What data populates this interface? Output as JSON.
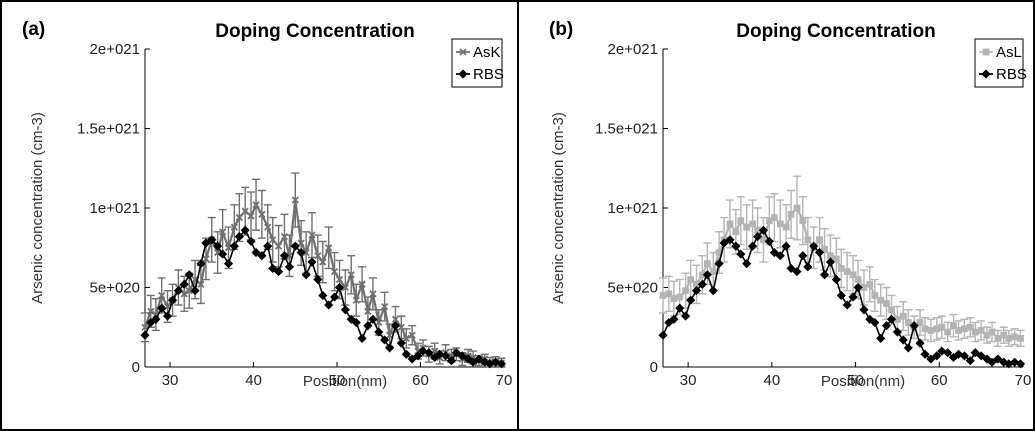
{
  "chart_data": [
    {
      "panel": "(a)",
      "type": "line",
      "title": "Doping Concentration",
      "xlabel": "Position(nm)",
      "ylabel": "Arsenic concentration (cm-3)",
      "xlim": [
        27,
        70
      ],
      "ylim": [
        0,
        2e+21
      ],
      "xticks": [
        30,
        40,
        50,
        60,
        70
      ],
      "yticks": [
        0,
        5e+20,
        1e+21,
        1.5e+21,
        2e+21
      ],
      "xtick_labels": [
        "30",
        "40",
        "50",
        "60",
        "70"
      ],
      "ytick_labels": [
        "0",
        "5e+020",
        "1e+021",
        "1.5e+021",
        "2e+021"
      ],
      "legend_position": "top-right",
      "grid": false,
      "series": [
        {
          "name": "AsK",
          "color": "#707070",
          "marker": "x",
          "error_bars": true,
          "x": [
            27,
            27.7,
            28.3,
            29,
            29.7,
            30.3,
            31,
            31.7,
            32.3,
            33,
            33.7,
            34.3,
            35,
            35.7,
            36.3,
            37,
            37.7,
            38.3,
            39,
            39.7,
            40.3,
            41,
            41.7,
            42.3,
            43,
            43.7,
            44.3,
            45,
            45.7,
            46.3,
            47,
            47.7,
            48.3,
            49,
            49.7,
            50.3,
            51,
            51.7,
            52.3,
            53,
            53.7,
            54.3,
            55,
            55.7,
            56.3,
            57,
            57.7,
            58.3,
            59,
            59.7,
            60.3,
            61,
            61.7,
            62.3,
            63,
            63.7,
            64.3,
            65,
            65.7,
            66.3,
            67,
            67.7,
            68.3,
            69,
            69.7
          ],
          "values": [
            2.5e+20,
            3.5e+20,
            3.3e+20,
            4.5e+20,
            3.8e+20,
            4.2e+20,
            5e+20,
            4.6e+20,
            4.8e+20,
            5.5e+20,
            5.2e+20,
            6.8e+20,
            8e+20,
            7.2e+20,
            8.5e+20,
            7.5e+20,
            8.8e+20,
            9.4e+20,
            9.8e+20,
            9.5e+20,
            1.02e+21,
            9.6e+20,
            8.8e+20,
            8e+20,
            7.6e+20,
            8.2e+20,
            7e+20,
            1.05e+21,
            7.8e+20,
            7.2e+20,
            8.3e+20,
            7e+20,
            6.6e+20,
            7.5e+20,
            6e+20,
            5.5e+20,
            5e+20,
            5.8e+20,
            4.2e+20,
            5.2e+20,
            3.5e+20,
            4.6e+20,
            2.8e+20,
            3.8e+20,
            2e+20,
            3e+20,
            2.5e+20,
            1.8e+20,
            2e+20,
            1e+20,
            1.2e+20,
            8e+19,
            1e+20,
            6e+19,
            9e+19,
            7e+19,
            8e+19,
            5e+19,
            7e+19,
            6e+19,
            4e+19,
            5e+19,
            3e+19,
            3.5e+19,
            2.5e+19
          ],
          "errors": [
            9e+19,
            1e+20,
            1e+20,
            1.1e+20,
            1e+20,
            1e+20,
            1.1e+20,
            1.1e+20,
            1.1e+20,
            1.2e+20,
            1.2e+20,
            1.3e+20,
            1.4e+20,
            1.3e+20,
            1.4e+20,
            1.3e+20,
            1.4e+20,
            1.5e+20,
            1.5e+20,
            1.5e+20,
            1.6e+20,
            1.5e+20,
            1.4e+20,
            1.4e+20,
            1.3e+20,
            1.4e+20,
            1.3e+20,
            1.7e+20,
            1.4e+20,
            1.3e+20,
            1.4e+20,
            1.3e+20,
            1.3e+20,
            1.3e+20,
            1.2e+20,
            1.2e+20,
            1.1e+20,
            1.2e+20,
            1e+20,
            1.1e+20,
            9e+19,
            1e+20,
            8e+19,
            9e+19,
            7e+19,
            8e+19,
            7e+19,
            6e+19,
            6e+19,
            5e+19,
            5e+19,
            5e+19,
            5e+19,
            4e+19,
            5e+19,
            4e+19,
            4e+19,
            4e+19,
            4e+19,
            4e+19,
            3e+19,
            3e+19,
            3e+19,
            3e+19,
            3e+19
          ]
        },
        {
          "name": "RBS",
          "color": "#000000",
          "marker": "diamond",
          "error_bars": false,
          "x": [
            27,
            27.7,
            28.3,
            29,
            29.7,
            30.3,
            31,
            31.7,
            32.3,
            33,
            33.7,
            34.3,
            35,
            35.7,
            36.3,
            37,
            37.7,
            38.3,
            39,
            39.7,
            40.3,
            41,
            41.7,
            42.3,
            43,
            43.7,
            44.3,
            45,
            45.7,
            46.3,
            47,
            47.7,
            48.3,
            49,
            49.7,
            50.3,
            51,
            51.7,
            52.3,
            53,
            53.7,
            54.3,
            55,
            55.7,
            56.3,
            57,
            57.7,
            58.3,
            59,
            59.7,
            60.3,
            61,
            61.7,
            62.3,
            63,
            63.7,
            64.3,
            65,
            65.7,
            66.3,
            67,
            67.7,
            68.3,
            69,
            69.7
          ],
          "values": [
            2e+20,
            2.8e+20,
            3e+20,
            3.7e+20,
            3.2e+20,
            4.2e+20,
            4.8e+20,
            5.2e+20,
            5.8e+20,
            4.8e+20,
            6.5e+20,
            7.8e+20,
            8e+20,
            7.6e+20,
            7.1e+20,
            6.5e+20,
            7.6e+20,
            8.2e+20,
            8.6e+20,
            7.9e+20,
            7.2e+20,
            7e+20,
            7.6e+20,
            6.2e+20,
            6e+20,
            7e+20,
            6.3e+20,
            7.6e+20,
            7.2e+20,
            5.8e+20,
            6.6e+20,
            5.5e+20,
            4.5e+20,
            3.9e+20,
            4.4e+20,
            5e+20,
            3.6e+20,
            3e+20,
            2.8e+20,
            1.8e+20,
            2.6e+20,
            3e+20,
            2.2e+20,
            1.7e+20,
            1.2e+20,
            2.6e+20,
            1.5e+20,
            8e+19,
            5e+19,
            7e+19,
            1e+20,
            9e+19,
            6e+19,
            8e+19,
            7e+19,
            4e+19,
            9e+19,
            7e+19,
            5e+19,
            3e+19,
            5e+19,
            3e+19,
            2e+19,
            3e+19,
            2e+19
          ]
        }
      ]
    },
    {
      "panel": "(b)",
      "type": "line",
      "title": "Doping Concentration",
      "xlabel": "Position(nm)",
      "ylabel": "Arsenic concentration (cm-3)",
      "xlim": [
        27,
        70
      ],
      "ylim": [
        0,
        2e+21
      ],
      "xticks": [
        30,
        40,
        50,
        60,
        70
      ],
      "yticks": [
        0,
        5e+20,
        1e+21,
        1.5e+21,
        2e+21
      ],
      "xtick_labels": [
        "30",
        "40",
        "50",
        "60",
        "70"
      ],
      "ytick_labels": [
        "0",
        "5e+020",
        "1e+021",
        "1.5e+021",
        "2e+021"
      ],
      "legend_position": "top-right",
      "grid": false,
      "series": [
        {
          "name": "AsL",
          "color": "#b4b4b4",
          "marker": "square",
          "error_bars": true,
          "x": [
            27,
            27.7,
            28.3,
            29,
            29.7,
            30.3,
            31,
            31.7,
            32.3,
            33,
            33.7,
            34.3,
            35,
            35.7,
            36.3,
            37,
            37.7,
            38.3,
            39,
            39.7,
            40.3,
            41,
            41.7,
            42.3,
            43,
            43.7,
            44.3,
            45,
            45.7,
            46.3,
            47,
            47.7,
            48.3,
            49,
            49.7,
            50.3,
            51,
            51.7,
            52.3,
            53,
            53.7,
            54.3,
            55,
            55.7,
            56.3,
            57,
            57.7,
            58.3,
            59,
            59.7,
            60.3,
            61,
            61.7,
            62.3,
            63,
            63.7,
            64.3,
            65,
            65.7,
            66.3,
            67,
            67.7,
            68.3,
            69,
            69.7
          ],
          "values": [
            4.5e+20,
            4.6e+20,
            4.3e+20,
            4.4e+20,
            4.8e+20,
            5.5e+20,
            5.2e+20,
            5.8e+20,
            6.5e+20,
            6e+20,
            7.2e+20,
            8e+20,
            9e+20,
            8.5e+20,
            9.2e+20,
            8.8e+20,
            9e+20,
            8.6e+20,
            8e+20,
            9.2e+20,
            9.4e+20,
            9e+20,
            8.8e+20,
            9.6e+20,
            1e+21,
            9.2e+20,
            8e+20,
            7.5e+20,
            8e+20,
            7.4e+20,
            7e+20,
            6.8e+20,
            6.2e+20,
            6e+20,
            5.8e+20,
            5.5e+20,
            5e+20,
            5.2e+20,
            4.5e+20,
            4.2e+20,
            4e+20,
            3.6e+20,
            3e+20,
            3.2e+20,
            2.8e+20,
            2.5e+20,
            2.8e+20,
            2.4e+20,
            2.3e+20,
            2.4e+20,
            2.5e+20,
            2.2e+20,
            2.6e+20,
            2.3e+20,
            2.4e+20,
            2.5e+20,
            2.2e+20,
            2.3e+20,
            2e+20,
            2.2e+20,
            1.8e+20,
            2e+20,
            1.8e+20,
            1.9e+20,
            1.8e+20
          ],
          "errors": [
            1.1e+20,
            1.1e+20,
            1.1e+20,
            1.1e+20,
            1.1e+20,
            1.2e+20,
            1.2e+20,
            1.2e+20,
            1.3e+20,
            1.2e+20,
            1.3e+20,
            1.4e+20,
            1.5e+20,
            1.4e+20,
            1.5e+20,
            1.4e+20,
            1.5e+20,
            1.4e+20,
            1.4e+20,
            1.5e+20,
            1.5e+20,
            1.5e+20,
            1.4e+20,
            1.5e+20,
            2e+20,
            1.5e+20,
            1.4e+20,
            1.3e+20,
            1.4e+20,
            1.3e+20,
            1.3e+20,
            1.3e+20,
            1.2e+20,
            1.2e+20,
            1.2e+20,
            1.2e+20,
            1.1e+20,
            1.1e+20,
            1e+20,
            1e+20,
            1e+20,
            9e+19,
            8e+19,
            9e+19,
            8e+19,
            7e+19,
            8e+19,
            7e+19,
            7e+19,
            7e+19,
            7e+19,
            6e+19,
            7e+19,
            6e+19,
            6e+19,
            6e+19,
            6e+19,
            6e+19,
            5e+19,
            6e+19,
            5e+19,
            5e+19,
            5e+19,
            5e+19,
            5e+19
          ]
        },
        {
          "name": "RBS",
          "color": "#000000",
          "marker": "diamond",
          "error_bars": false,
          "x": [
            27,
            27.7,
            28.3,
            29,
            29.7,
            30.3,
            31,
            31.7,
            32.3,
            33,
            33.7,
            34.3,
            35,
            35.7,
            36.3,
            37,
            37.7,
            38.3,
            39,
            39.7,
            40.3,
            41,
            41.7,
            42.3,
            43,
            43.7,
            44.3,
            45,
            45.7,
            46.3,
            47,
            47.7,
            48.3,
            49,
            49.7,
            50.3,
            51,
            51.7,
            52.3,
            53,
            53.7,
            54.3,
            55,
            55.7,
            56.3,
            57,
            57.7,
            58.3,
            59,
            59.7,
            60.3,
            61,
            61.7,
            62.3,
            63,
            63.7,
            64.3,
            65,
            65.7,
            66.3,
            67,
            67.7,
            68.3,
            69,
            69.7
          ],
          "values": [
            2e+20,
            2.8e+20,
            3e+20,
            3.7e+20,
            3.2e+20,
            4.2e+20,
            4.8e+20,
            5.2e+20,
            5.8e+20,
            4.8e+20,
            6.5e+20,
            7.8e+20,
            8e+20,
            7.6e+20,
            7.1e+20,
            6.5e+20,
            7.6e+20,
            8.2e+20,
            8.6e+20,
            7.9e+20,
            7.2e+20,
            7e+20,
            7.6e+20,
            6.2e+20,
            6e+20,
            7e+20,
            6.3e+20,
            7.6e+20,
            7.2e+20,
            5.8e+20,
            6.6e+20,
            5.5e+20,
            4.5e+20,
            3.9e+20,
            4.4e+20,
            5e+20,
            3.6e+20,
            3e+20,
            2.8e+20,
            1.8e+20,
            2.6e+20,
            3e+20,
            2.2e+20,
            1.7e+20,
            1.2e+20,
            2.6e+20,
            1.5e+20,
            8e+19,
            5e+19,
            7e+19,
            1e+20,
            9e+19,
            6e+19,
            8e+19,
            7e+19,
            4e+19,
            9e+19,
            7e+19,
            5e+19,
            3e+19,
            5e+19,
            3e+19,
            2e+19,
            3e+19,
            2e+19
          ]
        }
      ]
    }
  ]
}
